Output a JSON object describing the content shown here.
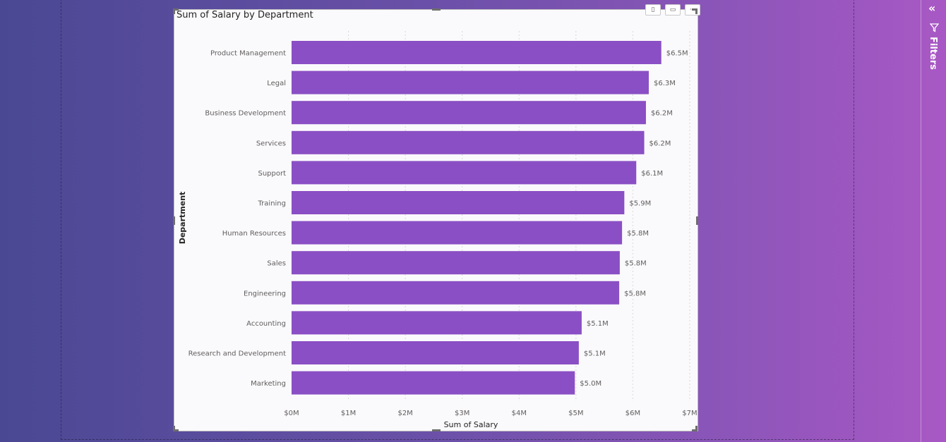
{
  "colors": {
    "bar": "#8a4fc4",
    "label": "#605e5c",
    "title": "#252423",
    "grid": "#d9d9d9"
  },
  "visual": {
    "title": "Sum of Salary by Department"
  },
  "filters_pane": {
    "label": "Filters",
    "collapse_icon": "double-chevron-right",
    "filter_icon": "funnel-icon"
  },
  "chart_data": {
    "type": "bar",
    "orientation": "horizontal",
    "title": "Sum of Salary by Department",
    "xlabel": "Sum of Salary",
    "ylabel": "Department",
    "categories": [
      "Product Management",
      "Legal",
      "Business Development",
      "Services",
      "Support",
      "Training",
      "Human Resources",
      "Sales",
      "Engineering",
      "Accounting",
      "Research and Development",
      "Marketing"
    ],
    "values": [
      6.5,
      6.28,
      6.23,
      6.2,
      6.06,
      5.85,
      5.81,
      5.77,
      5.76,
      5.1,
      5.05,
      4.98
    ],
    "data_labels": [
      "$6.5M",
      "$6.3M",
      "$6.2M",
      "$6.2M",
      "$6.1M",
      "$5.9M",
      "$5.8M",
      "$5.8M",
      "$5.8M",
      "$5.1M",
      "$5.1M",
      "$5.0M"
    ],
    "xticks": [
      "$0M",
      "$1M",
      "$2M",
      "$3M",
      "$4M",
      "$5M",
      "$6M",
      "$7M"
    ],
    "xlim": [
      0,
      7
    ],
    "unit": "$M",
    "grid": true
  }
}
